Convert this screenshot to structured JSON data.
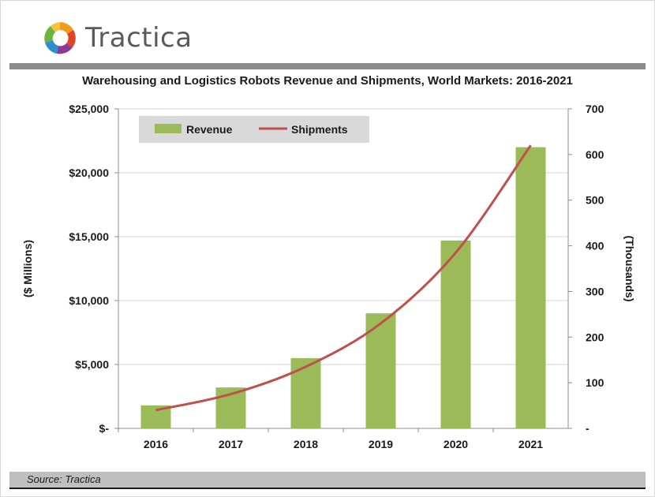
{
  "brand": {
    "name": "Tractica"
  },
  "footer": {
    "source": "Source: Tractica"
  },
  "colors": {
    "revenue": "#9bbb59",
    "shipments": "#c0504d",
    "legend_bg": "#d9d9d9",
    "grid": "#d4d4d4"
  },
  "chart_data": {
    "type": "bar",
    "title": "Warehousing and Logistics Robots Revenue and Shipments, World Markets: 2016-2021",
    "categories": [
      "2016",
      "2017",
      "2018",
      "2019",
      "2020",
      "2021"
    ],
    "series": [
      {
        "name": "Revenue",
        "type": "bar",
        "axis": "left",
        "values": [
          1800,
          3200,
          5500,
          9000,
          14700,
          22000
        ]
      },
      {
        "name": "Shipments",
        "type": "line",
        "axis": "right",
        "values": [
          40,
          75,
          135,
          230,
          385,
          620
        ]
      }
    ],
    "ylabel": "($ Millions)",
    "y2label": "(Thousands)",
    "ylim": [
      0,
      25000
    ],
    "y2lim": [
      0,
      700
    ],
    "yticks": [
      0,
      5000,
      10000,
      15000,
      20000,
      25000
    ],
    "ytick_labels": [
      "$-",
      "$5,000",
      "$10,000",
      "$15,000",
      "$20,000",
      "$25,000"
    ],
    "y2ticks": [
      0,
      100,
      200,
      300,
      400,
      500,
      600,
      700
    ],
    "y2tick_labels": [
      "-",
      "100",
      "200",
      "300",
      "400",
      "500",
      "600",
      "700"
    ],
    "legend": {
      "position": "top-left",
      "entries": [
        "Revenue",
        "Shipments"
      ]
    },
    "grid": true
  }
}
